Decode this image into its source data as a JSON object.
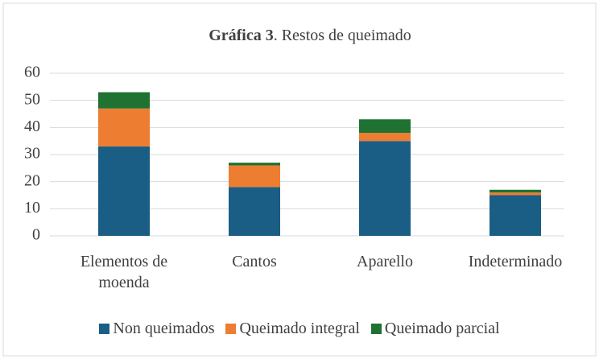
{
  "chart_data": {
    "type": "bar",
    "stacked": true,
    "title": [
      "Gráfica 3",
      ". Restos de queimado"
    ],
    "categories": [
      "Elementos de moenda",
      "Cantos",
      "Aparello",
      "Indeterminado"
    ],
    "series": [
      {
        "name": "Non queimados",
        "color": "#1b5e85",
        "values": [
          33,
          18,
          35,
          15
        ]
      },
      {
        "name": "Queimado integral",
        "color": "#ed7d31",
        "values": [
          14,
          8,
          3,
          1
        ]
      },
      {
        "name": "Queimado parcial",
        "color": "#1f7232",
        "values": [
          6,
          1,
          5,
          1
        ]
      }
    ],
    "ylim": [
      0,
      60
    ],
    "yticks": [
      0,
      10,
      20,
      30,
      40,
      50,
      60
    ],
    "grid": true,
    "legend": "bottom"
  }
}
